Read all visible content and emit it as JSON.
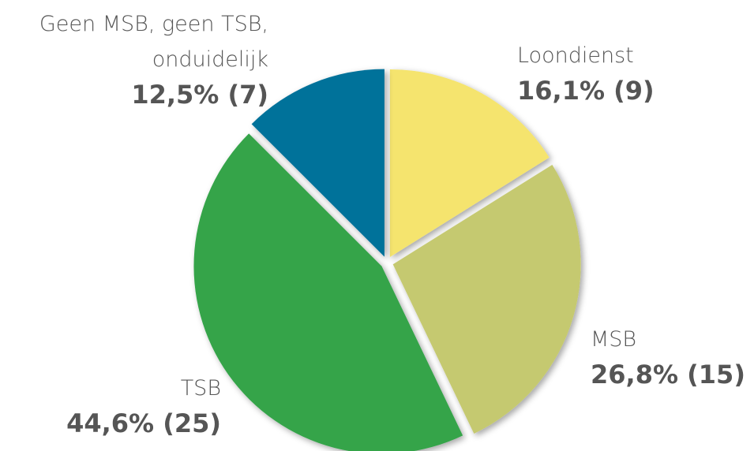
{
  "chart_data": {
    "type": "pie",
    "categories": [
      "Loondienst",
      "MSB",
      "TSB",
      "Geen MSB, geen TSB,\nonduidelijk"
    ],
    "values": [
      16.1,
      26.8,
      44.6,
      12.5
    ],
    "value_labels": [
      "16,1% (9)",
      "26,8% (15)",
      "44,6% (25)",
      "12,5% (7)"
    ],
    "colors": [
      "#f5e46e",
      "#c5c96f",
      "#34a44a",
      "#00729a"
    ]
  }
}
